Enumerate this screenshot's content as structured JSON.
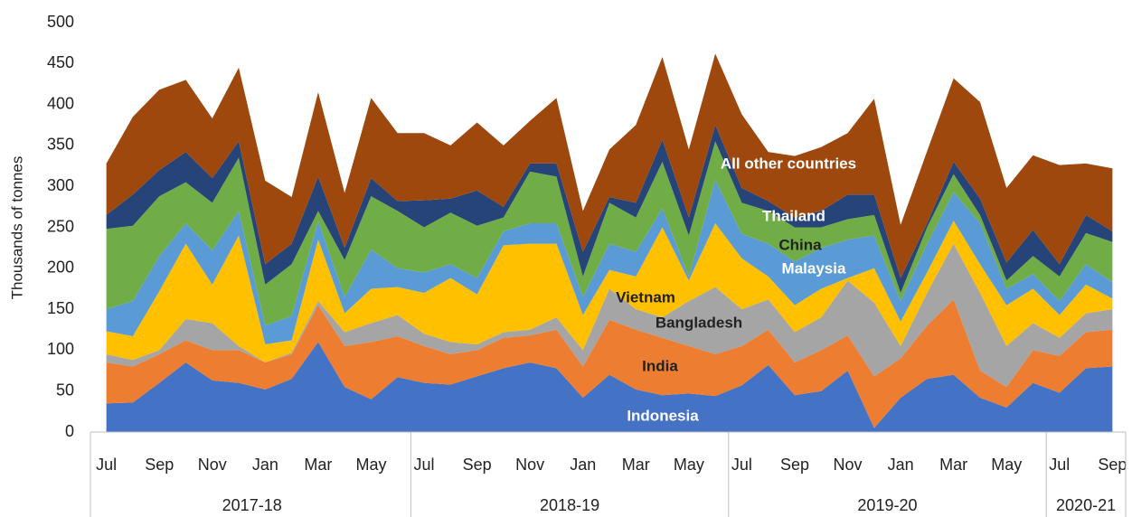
{
  "chart_data": {
    "type": "stacked-area",
    "y_label": "Thousands of tonnes",
    "ylim": [
      0,
      500
    ],
    "yticks": [
      0,
      50,
      100,
      150,
      200,
      250,
      300,
      350,
      400,
      450,
      500
    ],
    "grid": false,
    "categories": [
      "Jul",
      null,
      "Sep",
      null,
      "Nov",
      null,
      "Jan",
      null,
      "Mar",
      null,
      "May",
      null,
      "Jul",
      null,
      "Sep",
      null,
      "Nov",
      null,
      "Jan",
      null,
      "Mar",
      null,
      "May",
      null,
      "Jul",
      null,
      "Sep",
      null,
      "Nov",
      null,
      "Jan",
      null,
      "Mar",
      null,
      "May",
      null,
      "Jul",
      null,
      "Sep"
    ],
    "groups": [
      {
        "label": "2017-18",
        "count": 12
      },
      {
        "label": "2018-19",
        "count": 12
      },
      {
        "label": "2019-20",
        "count": 12
      },
      {
        "label": "2020-21",
        "count": 3
      }
    ],
    "series": [
      {
        "name": "Indonesia",
        "color": "#4472c4",
        "values": [
          35,
          36,
          60,
          85,
          63,
          60,
          52,
          65,
          110,
          55,
          40,
          67,
          60,
          58,
          68,
          78,
          85,
          78,
          42,
          70,
          52,
          45,
          47,
          44,
          57,
          82,
          45,
          50,
          75,
          5,
          42,
          65,
          70,
          42,
          30,
          60,
          48,
          78,
          80
        ]
      },
      {
        "name": "India",
        "color": "#ed7d31",
        "values": [
          50,
          44,
          35,
          27,
          37,
          40,
          33,
          30,
          45,
          50,
          70,
          50,
          45,
          37,
          32,
          37,
          33,
          47,
          38,
          67,
          73,
          70,
          58,
          51,
          48,
          43,
          40,
          50,
          43,
          63,
          48,
          65,
          92,
          33,
          25,
          40,
          45,
          44,
          45
        ]
      },
      {
        "name": "Bangladesh",
        "color": "#a5a5a5",
        "values": [
          10,
          8,
          5,
          26,
          33,
          5,
          0,
          2,
          5,
          17,
          23,
          26,
          15,
          15,
          7,
          7,
          7,
          15,
          20,
          38,
          25,
          25,
          55,
          82,
          45,
          37,
          37,
          40,
          67,
          90,
          15,
          40,
          68,
          95,
          50,
          33,
          22,
          23,
          25
        ]
      },
      {
        "name": "Vietnam",
        "color": "#ffc000",
        "values": [
          28,
          29,
          72,
          92,
          47,
          135,
          22,
          15,
          75,
          23,
          42,
          34,
          50,
          78,
          61,
          106,
          105,
          90,
          43,
          23,
          40,
          110,
          25,
          78,
          62,
          28,
          33,
          35,
          3,
          42,
          30,
          25,
          28,
          35,
          50,
          42,
          28,
          35,
          13
        ]
      },
      {
        "name": "Malaysia",
        "color": "#5b9bd5",
        "values": [
          27,
          43,
          43,
          25,
          42,
          30,
          23,
          30,
          23,
          20,
          48,
          23,
          25,
          17,
          20,
          17,
          25,
          25,
          22,
          32,
          30,
          23,
          5,
          53,
          30,
          40,
          53,
          50,
          47,
          40,
          25,
          35,
          35,
          50,
          20,
          18,
          17,
          25,
          20
        ]
      },
      {
        "name": "China",
        "color": "#70ad47",
        "values": [
          98,
          92,
          73,
          50,
          58,
          65,
          50,
          63,
          12,
          45,
          65,
          70,
          55,
          63,
          64,
          17,
          63,
          57,
          25,
          50,
          42,
          57,
          50,
          47,
          38,
          40,
          42,
          25,
          25,
          25,
          10,
          20,
          22,
          10,
          10,
          22,
          30,
          38,
          49
        ]
      },
      {
        "name": "Thailand",
        "color": "#264478",
        "values": [
          17,
          38,
          32,
          37,
          30,
          20,
          25,
          25,
          42,
          15,
          22,
          12,
          33,
          17,
          43,
          13,
          10,
          16,
          30,
          7,
          18,
          27,
          22,
          20,
          18,
          12,
          12,
          20,
          30,
          25,
          18,
          5,
          15,
          20,
          22,
          32,
          15,
          22,
          13
        ]
      },
      {
        "name": "All other countries",
        "color": "#9e480e",
        "values": [
          63,
          95,
          98,
          88,
          73,
          90,
          102,
          57,
          103,
          67,
          98,
          83,
          82,
          65,
          83,
          75,
          52,
          80,
          50,
          58,
          95,
          101,
          83,
          87,
          90,
          60,
          75,
          78,
          75,
          117,
          65,
          88,
          102,
          118,
          91,
          91,
          121,
          63,
          77
        ]
      }
    ]
  }
}
